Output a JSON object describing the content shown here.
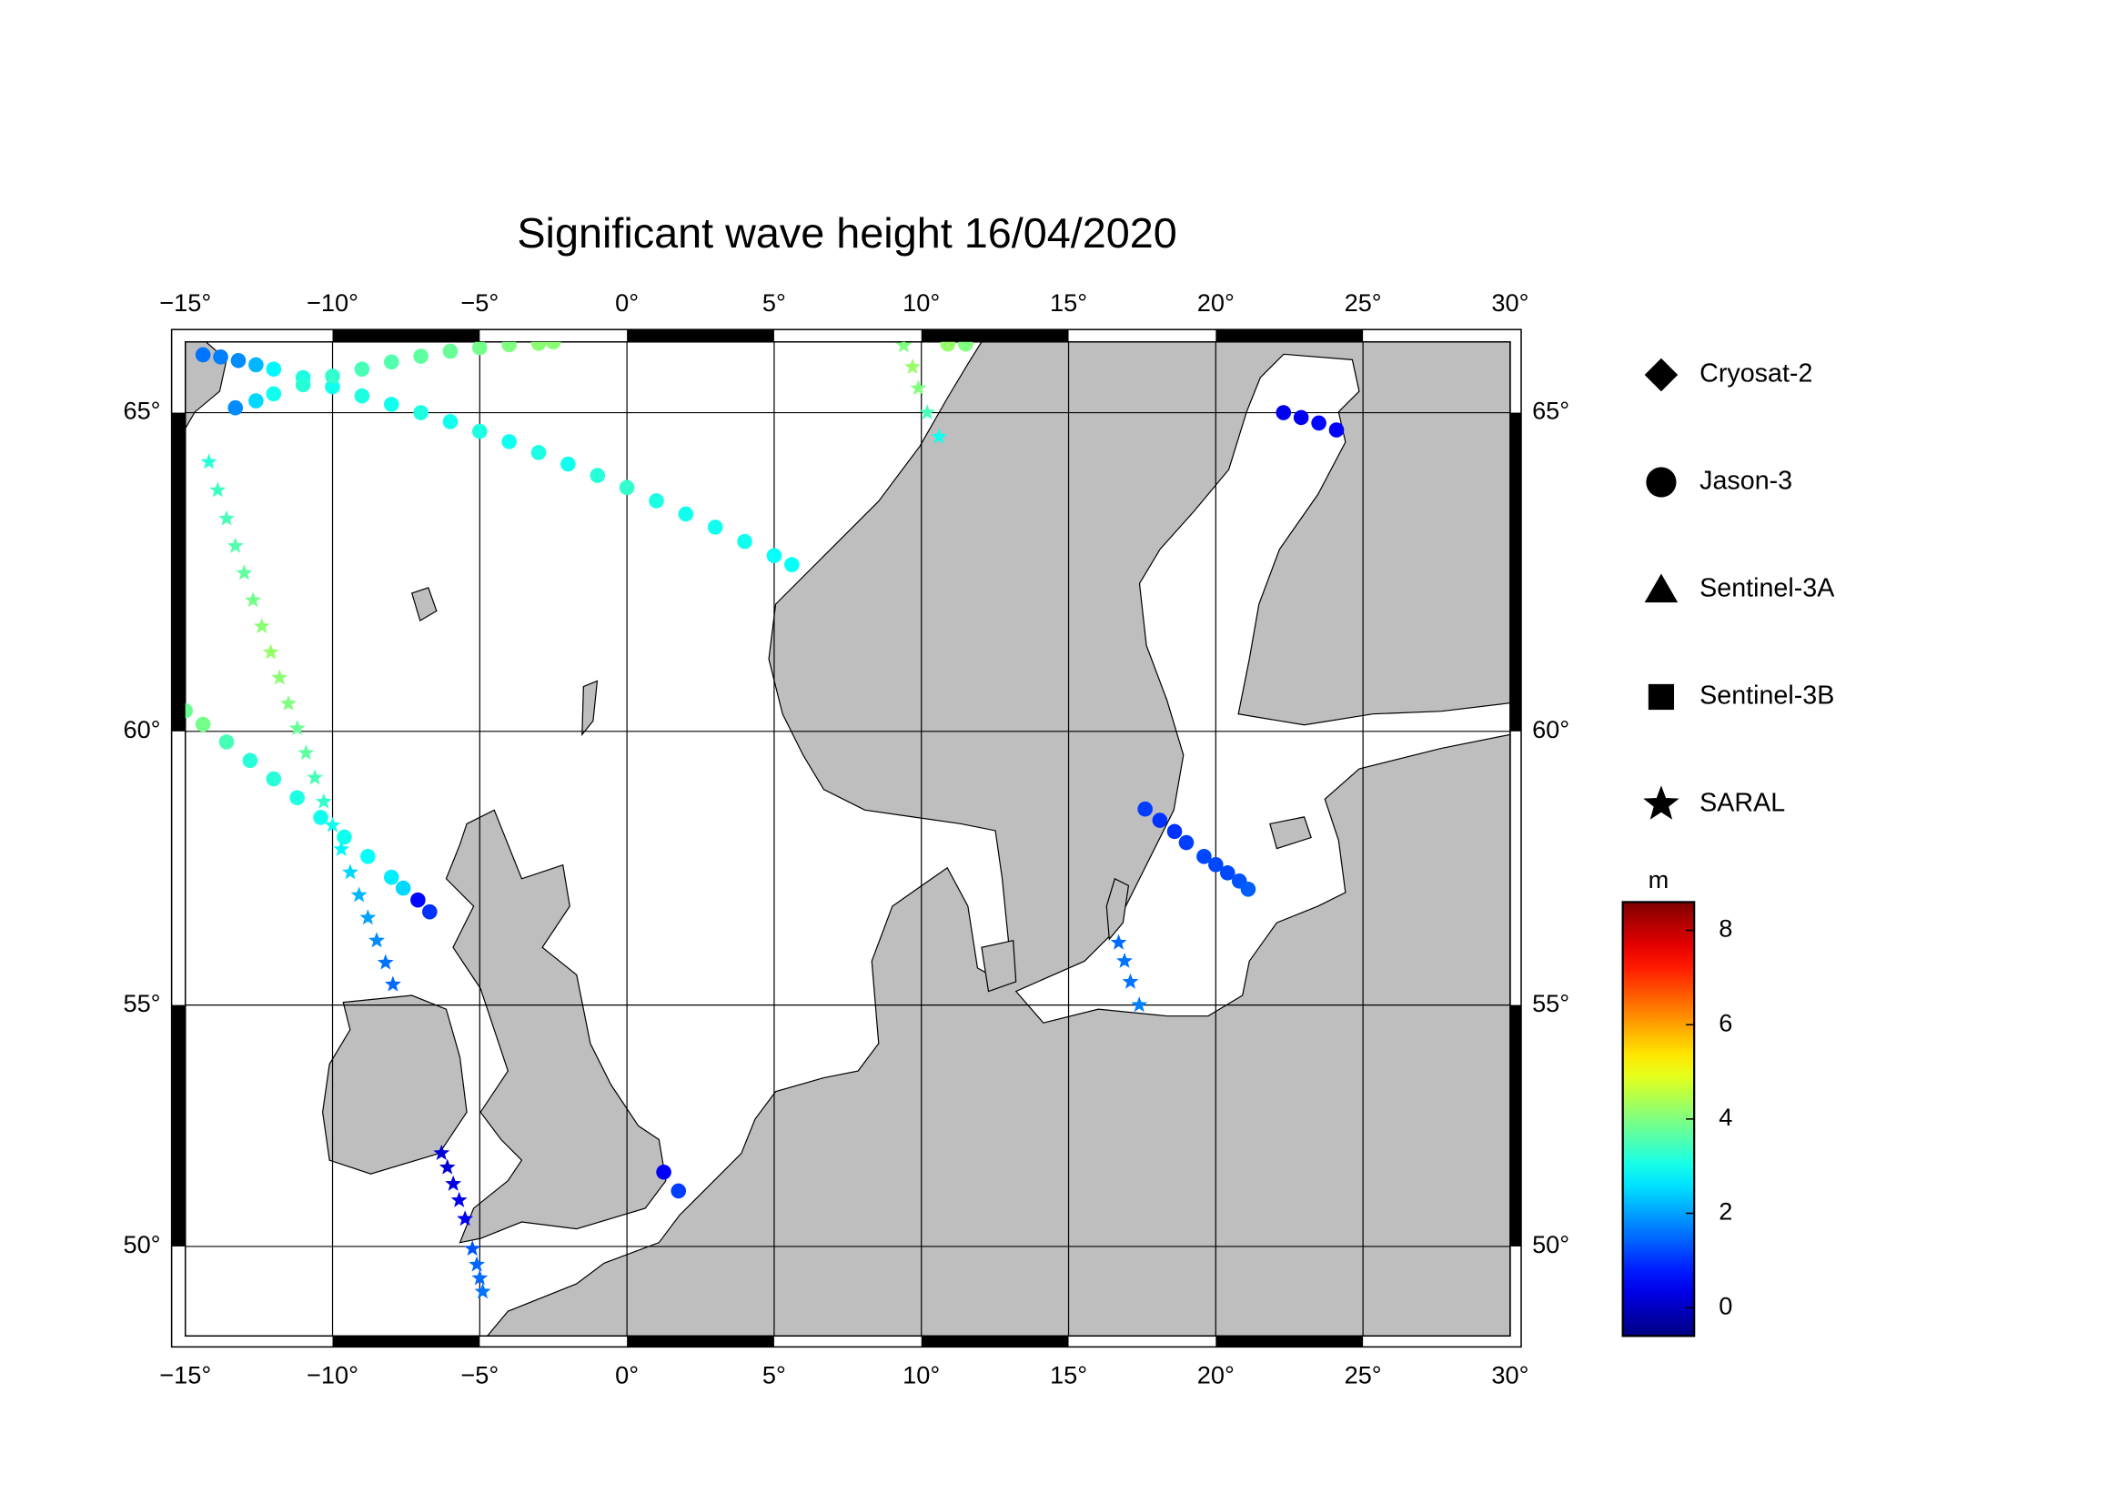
{
  "chart_data": {
    "type": "map",
    "title": "Significant wave height 16/04/2020",
    "projection": "mercator",
    "grid": true,
    "xlim": [
      -15,
      30
    ],
    "ylim": [
      48,
      66
    ],
    "xticks": [
      {
        "value": -15,
        "label": "−15°"
      },
      {
        "value": -10,
        "label": "−10°"
      },
      {
        "value": -5,
        "label": "−5°"
      },
      {
        "value": 0,
        "label": "0°"
      },
      {
        "value": 5,
        "label": "5°"
      },
      {
        "value": 10,
        "label": "10°"
      },
      {
        "value": 15,
        "label": "15°"
      },
      {
        "value": 20,
        "label": "20°"
      },
      {
        "value": 25,
        "label": "25°"
      },
      {
        "value": 30,
        "label": "30°"
      }
    ],
    "yticks": [
      {
        "value": 50,
        "label": "50°"
      },
      {
        "value": 55,
        "label": "55°"
      },
      {
        "value": 60,
        "label": "60°"
      },
      {
        "value": 65,
        "label": "65°"
      }
    ],
    "colorbar": {
      "label": "m",
      "cmap": "jet",
      "clim": [
        -0.6,
        8.6
      ],
      "ticks": [
        0,
        2,
        4,
        6,
        8
      ]
    },
    "series": [
      {
        "name": "Cryosat-2",
        "marker": "diamond",
        "lon": [],
        "lat": [],
        "values": []
      },
      {
        "name": "Jason-3",
        "marker": "circle",
        "lon": [
          -14.4,
          -13.8,
          -13.2,
          -12.6,
          -12,
          -11,
          -10,
          -9,
          -8,
          -7,
          -6,
          -5,
          -4,
          -3,
          -2,
          -1,
          0,
          1,
          2,
          3,
          4,
          5,
          5.6,
          -13.3,
          -12.6,
          -12,
          -11,
          -10,
          -9,
          -8,
          -7,
          -6,
          -5,
          -4,
          -3,
          -2.5,
          -15,
          -14.4,
          -13.6,
          -12.8,
          -12,
          -11.2,
          -10.4,
          -9.6,
          -8.8,
          -8,
          -7.6,
          -7.1,
          -6.7,
          1.25,
          1.75,
          17.6,
          18.1,
          18.6,
          19.0,
          19.6,
          20.0,
          20.4,
          20.8,
          21.1,
          22.3,
          22.9,
          23.5,
          24.1,
          10.9,
          11.5
        ],
        "lat": [
          65.82,
          65.79,
          65.74,
          65.68,
          65.62,
          65.5,
          65.37,
          65.24,
          65.12,
          65.0,
          64.87,
          64.73,
          64.58,
          64.42,
          64.25,
          64.08,
          63.9,
          63.7,
          63.5,
          63.3,
          63.08,
          62.86,
          62.72,
          65.07,
          65.17,
          65.27,
          65.4,
          65.52,
          65.62,
          65.72,
          65.8,
          65.87,
          65.92,
          65.96,
          65.98,
          66.0,
          60.35,
          60.12,
          59.82,
          59.5,
          59.18,
          58.85,
          58.5,
          58.15,
          57.8,
          57.42,
          57.22,
          57.0,
          56.78,
          51.6,
          51.2,
          58.65,
          58.45,
          58.25,
          58.05,
          57.8,
          57.65,
          57.5,
          57.35,
          57.2,
          65.0,
          64.93,
          64.85,
          64.75,
          65.97,
          65.97
        ],
        "values": [
          1.6,
          1.7,
          1.8,
          2.2,
          2.8,
          3.1,
          3.0,
          3.1,
          3.0,
          3.1,
          3.0,
          3.1,
          3.0,
          3.1,
          3.0,
          3.2,
          3.3,
          3.1,
          3.0,
          3.0,
          3.0,
          2.9,
          2.9,
          1.8,
          2.5,
          3.0,
          3.2,
          3.3,
          3.5,
          3.6,
          3.7,
          3.8,
          3.9,
          4.0,
          4.1,
          4.1,
          3.8,
          3.9,
          3.5,
          3.2,
          3.2,
          3.1,
          3.0,
          3.0,
          2.9,
          2.7,
          2.5,
          0.6,
          1.0,
          0.5,
          1.1,
          1.1,
          1.0,
          1.0,
          1.1,
          1.2,
          1.2,
          1.2,
          1.3,
          1.4,
          0.4,
          0.4,
          0.6,
          0.5,
          4.2,
          4.0
        ]
      },
      {
        "name": "Sentinel-3A",
        "marker": "triangle",
        "lon": [],
        "lat": [],
        "values": []
      },
      {
        "name": "Sentinel-3B",
        "marker": "square",
        "lon": [],
        "lat": [],
        "values": []
      },
      {
        "name": "SARAL",
        "marker": "star",
        "lon": [
          -14.2,
          -13.9,
          -13.6,
          -13.3,
          -13.0,
          -12.7,
          -12.4,
          -12.1,
          -11.8,
          -11.5,
          -11.2,
          -10.9,
          -10.6,
          -10.3,
          -10.0,
          -9.7,
          -9.4,
          -9.1,
          -8.8,
          -8.5,
          -8.2,
          -7.95,
          9.4,
          9.7,
          9.9,
          10.2,
          10.6,
          16.7,
          16.9,
          17.1,
          17.4,
          -6.3,
          -6.1,
          -5.9,
          -5.7,
          -5.5,
          -5.25,
          -5.1,
          -5.0,
          -4.9
        ],
        "lat": [
          64.28,
          63.86,
          63.43,
          63.01,
          62.59,
          62.16,
          61.74,
          61.32,
          60.9,
          60.47,
          60.05,
          59.63,
          59.2,
          58.78,
          58.36,
          57.93,
          57.51,
          57.09,
          56.67,
          56.24,
          55.82,
          55.4,
          65.95,
          65.65,
          65.35,
          65.0,
          64.65,
          56.2,
          55.85,
          55.45,
          55.0,
          52.0,
          51.7,
          51.35,
          51.0,
          50.6,
          49.95,
          49.6,
          49.3,
          49.0
        ],
        "values": [
          3.2,
          3.4,
          3.5,
          3.6,
          3.7,
          3.9,
          4.1,
          4.2,
          4.1,
          4.0,
          3.8,
          3.7,
          3.5,
          3.3,
          3.0,
          2.8,
          2.5,
          2.2,
          2.0,
          1.8,
          1.6,
          1.5,
          4.0,
          4.2,
          4.0,
          3.5,
          3.0,
          1.5,
          1.6,
          1.6,
          1.7,
          0.2,
          0.2,
          0.3,
          0.4,
          0.5,
          1.3,
          1.5,
          1.5,
          1.6
        ]
      }
    ]
  }
}
